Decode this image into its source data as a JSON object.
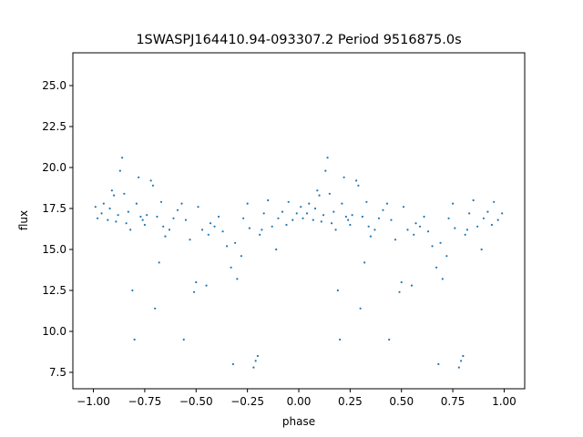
{
  "chart_data": {
    "type": "scatter",
    "title": "1SWASPJ164410.94-093307.2 Period 9516875.0s",
    "xlabel": "phase",
    "ylabel": "flux",
    "xlim": [
      -1.1,
      1.1
    ],
    "ylim": [
      6.5,
      27.0
    ],
    "xticks": [
      -1.0,
      -0.75,
      -0.5,
      -0.25,
      0.0,
      0.25,
      0.5,
      0.75,
      1.0
    ],
    "xtick_labels": [
      "−1.00",
      "−0.75",
      "−0.50",
      "−0.25",
      "0.00",
      "0.25",
      "0.50",
      "0.75",
      "1.00"
    ],
    "yticks": [
      7.5,
      10.0,
      12.5,
      15.0,
      17.5,
      20.0,
      22.5,
      25.0
    ],
    "ytick_labels": [
      "7.5",
      "10.0",
      "12.5",
      "15.0",
      "17.5",
      "20.0",
      "22.5",
      "25.0"
    ],
    "grid": false,
    "marker_color": "#1f77b4",
    "series": [
      {
        "points": [
          [
            -0.99,
            17.6
          ],
          [
            -0.98,
            16.9
          ],
          [
            -0.96,
            17.2
          ],
          [
            -0.95,
            17.8
          ],
          [
            -0.93,
            16.8
          ],
          [
            -0.92,
            17.5
          ],
          [
            -0.91,
            18.6
          ],
          [
            -0.9,
            18.3
          ],
          [
            -0.89,
            16.7
          ],
          [
            -0.88,
            17.1
          ],
          [
            -0.87,
            19.8
          ],
          [
            -0.86,
            20.6
          ],
          [
            -0.85,
            18.4
          ],
          [
            -0.84,
            16.6
          ],
          [
            -0.83,
            17.3
          ],
          [
            -0.82,
            16.2
          ],
          [
            -0.81,
            12.5
          ],
          [
            -0.8,
            9.5
          ],
          [
            -0.79,
            17.8
          ],
          [
            -0.78,
            19.4
          ],
          [
            -0.77,
            17.0
          ],
          [
            -0.76,
            16.8
          ],
          [
            -0.75,
            16.5
          ],
          [
            -0.74,
            17.1
          ],
          [
            -0.72,
            19.2
          ],
          [
            -0.71,
            18.9
          ],
          [
            -0.7,
            11.4
          ],
          [
            -0.69,
            17.0
          ],
          [
            -0.68,
            14.2
          ],
          [
            -0.67,
            17.9
          ],
          [
            -0.66,
            16.4
          ],
          [
            -0.65,
            15.8
          ],
          [
            -0.63,
            16.2
          ],
          [
            -0.61,
            16.9
          ],
          [
            -0.59,
            17.4
          ],
          [
            -0.57,
            17.8
          ],
          [
            -0.56,
            9.5
          ],
          [
            -0.55,
            16.8
          ],
          [
            -0.53,
            15.6
          ],
          [
            -0.51,
            12.4
          ],
          [
            -0.5,
            13.0
          ],
          [
            -0.49,
            17.6
          ],
          [
            -0.47,
            16.2
          ],
          [
            -0.45,
            12.8
          ],
          [
            -0.44,
            15.9
          ],
          [
            -0.43,
            16.6
          ],
          [
            -0.41,
            16.4
          ],
          [
            -0.39,
            17.0
          ],
          [
            -0.37,
            16.1
          ],
          [
            -0.35,
            15.2
          ],
          [
            -0.33,
            13.9
          ],
          [
            -0.32,
            8.0
          ],
          [
            -0.31,
            15.4
          ],
          [
            -0.3,
            13.2
          ],
          [
            -0.28,
            14.6
          ],
          [
            -0.27,
            16.9
          ],
          [
            -0.25,
            17.8
          ],
          [
            -0.24,
            16.3
          ],
          [
            -0.22,
            7.8
          ],
          [
            -0.21,
            8.2
          ],
          [
            -0.2,
            8.5
          ],
          [
            -0.19,
            15.9
          ],
          [
            -0.18,
            16.2
          ],
          [
            -0.17,
            17.2
          ],
          [
            -0.15,
            18.0
          ],
          [
            -0.13,
            16.4
          ],
          [
            -0.11,
            15.0
          ],
          [
            -0.1,
            16.9
          ],
          [
            -0.08,
            17.3
          ],
          [
            -0.06,
            16.5
          ],
          [
            -0.05,
            17.9
          ],
          [
            -0.03,
            16.8
          ],
          [
            -0.01,
            17.2
          ],
          [
            0.01,
            17.6
          ],
          [
            0.02,
            16.9
          ],
          [
            0.04,
            17.2
          ],
          [
            0.05,
            17.8
          ],
          [
            0.07,
            16.8
          ],
          [
            0.08,
            17.5
          ],
          [
            0.09,
            18.6
          ],
          [
            0.1,
            18.3
          ],
          [
            0.11,
            16.7
          ],
          [
            0.12,
            17.1
          ],
          [
            0.13,
            19.8
          ],
          [
            0.14,
            20.6
          ],
          [
            0.15,
            18.4
          ],
          [
            0.16,
            16.6
          ],
          [
            0.17,
            17.3
          ],
          [
            0.18,
            16.2
          ],
          [
            0.19,
            12.5
          ],
          [
            0.2,
            9.5
          ],
          [
            0.21,
            17.8
          ],
          [
            0.22,
            19.4
          ],
          [
            0.23,
            17.0
          ],
          [
            0.24,
            16.8
          ],
          [
            0.25,
            16.5
          ],
          [
            0.26,
            17.1
          ],
          [
            0.28,
            19.2
          ],
          [
            0.29,
            18.9
          ],
          [
            0.3,
            11.4
          ],
          [
            0.31,
            17.0
          ],
          [
            0.32,
            14.2
          ],
          [
            0.33,
            17.9
          ],
          [
            0.34,
            16.4
          ],
          [
            0.35,
            15.8
          ],
          [
            0.37,
            16.2
          ],
          [
            0.39,
            16.9
          ],
          [
            0.41,
            17.4
          ],
          [
            0.43,
            17.8
          ],
          [
            0.44,
            9.5
          ],
          [
            0.45,
            16.8
          ],
          [
            0.47,
            15.6
          ],
          [
            0.49,
            12.4
          ],
          [
            0.5,
            13.0
          ],
          [
            0.51,
            17.6
          ],
          [
            0.53,
            16.2
          ],
          [
            0.55,
            12.8
          ],
          [
            0.56,
            15.9
          ],
          [
            0.57,
            16.6
          ],
          [
            0.59,
            16.4
          ],
          [
            0.61,
            17.0
          ],
          [
            0.63,
            16.1
          ],
          [
            0.65,
            15.2
          ],
          [
            0.67,
            13.9
          ],
          [
            0.68,
            8.0
          ],
          [
            0.69,
            15.4
          ],
          [
            0.7,
            13.2
          ],
          [
            0.72,
            14.6
          ],
          [
            0.73,
            16.9
          ],
          [
            0.75,
            17.8
          ],
          [
            0.76,
            16.3
          ],
          [
            0.78,
            7.8
          ],
          [
            0.79,
            8.2
          ],
          [
            0.8,
            8.5
          ],
          [
            0.81,
            15.9
          ],
          [
            0.82,
            16.2
          ],
          [
            0.83,
            17.2
          ],
          [
            0.85,
            18.0
          ],
          [
            0.87,
            16.4
          ],
          [
            0.89,
            15.0
          ],
          [
            0.9,
            16.9
          ],
          [
            0.92,
            17.3
          ],
          [
            0.94,
            16.5
          ],
          [
            0.95,
            17.9
          ],
          [
            0.97,
            16.8
          ],
          [
            0.99,
            17.2
          ]
        ]
      }
    ]
  }
}
